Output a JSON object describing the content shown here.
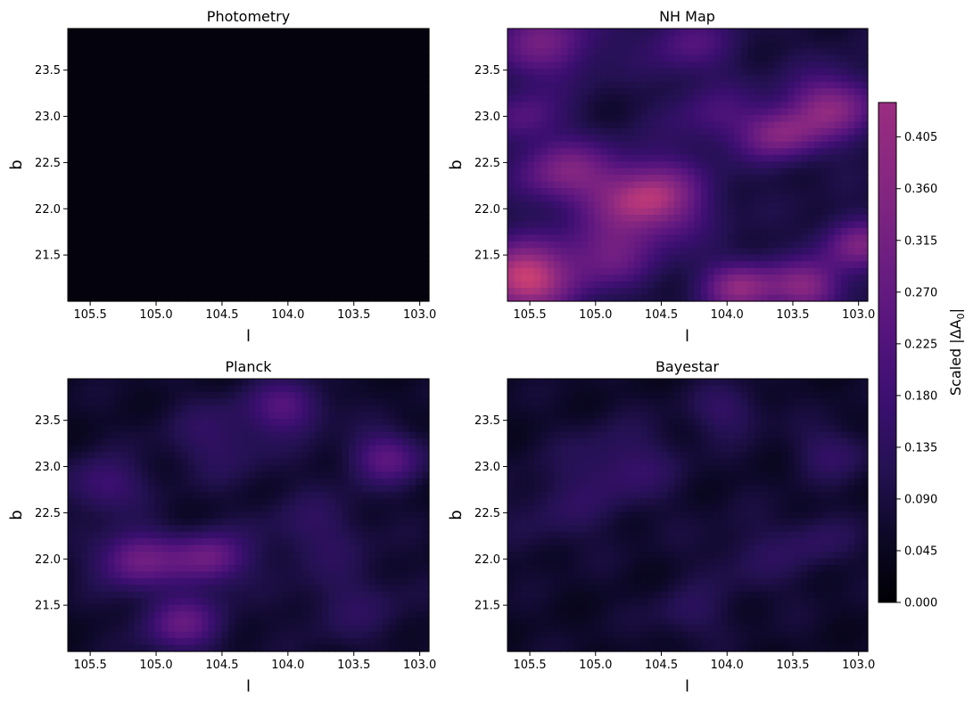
{
  "chart_data": {
    "type": "heatmap",
    "colormap": "magma",
    "panels": [
      {
        "title": "Photometry",
        "xlabel": "l",
        "ylabel": "b",
        "xlim": [
          105.67,
          102.93
        ],
        "ylim": [
          21.0,
          23.95
        ],
        "xticks": [
          "105.5",
          "105.0",
          "104.5",
          "104.0",
          "103.5",
          "103.0"
        ],
        "yticks": [
          "21.5",
          "22.0",
          "22.5",
          "23.0",
          "23.5"
        ],
        "base_level": 0.015,
        "blobs": []
      },
      {
        "title": "NH Map",
        "xlabel": "l",
        "ylabel": "b",
        "xlim": [
          105.67,
          102.93
        ],
        "ylim": [
          21.0,
          23.95
        ],
        "xticks": [
          "105.5",
          "105.0",
          "104.5",
          "104.0",
          "103.5",
          "103.0"
        ],
        "yticks": [
          "21.5",
          "22.0",
          "22.5",
          "23.0",
          "23.5"
        ],
        "base_level": 0.08,
        "blobs": [
          {
            "l": 105.55,
            "b": 21.25,
            "a": 0.33,
            "s": 0.28
          },
          {
            "l": 104.6,
            "b": 22.1,
            "a": 0.3,
            "s": 0.3
          },
          {
            "l": 105.25,
            "b": 22.4,
            "a": 0.2,
            "s": 0.25
          },
          {
            "l": 104.9,
            "b": 21.5,
            "a": 0.15,
            "s": 0.25
          },
          {
            "l": 103.9,
            "b": 21.15,
            "a": 0.24,
            "s": 0.2
          },
          {
            "l": 103.4,
            "b": 21.15,
            "a": 0.22,
            "s": 0.2
          },
          {
            "l": 103.2,
            "b": 23.1,
            "a": 0.23,
            "s": 0.25
          },
          {
            "l": 103.6,
            "b": 22.8,
            "a": 0.2,
            "s": 0.2
          },
          {
            "l": 105.4,
            "b": 23.8,
            "a": 0.18,
            "s": 0.3
          },
          {
            "l": 104.3,
            "b": 23.8,
            "a": 0.12,
            "s": 0.25
          },
          {
            "l": 103.0,
            "b": 21.6,
            "a": 0.2,
            "s": 0.2
          },
          {
            "l": 105.55,
            "b": 23.0,
            "a": 0.12,
            "s": 0.2
          },
          {
            "l": 104.1,
            "b": 23.0,
            "a": 0.1,
            "s": 0.25
          }
        ]
      },
      {
        "title": "Planck",
        "xlabel": "l",
        "ylabel": "b",
        "xlim": [
          105.67,
          102.93
        ],
        "ylim": [
          21.0,
          23.95
        ],
        "xticks": [
          "105.5",
          "105.0",
          "104.5",
          "104.0",
          "103.5",
          "103.0"
        ],
        "yticks": [
          "21.5",
          "22.0",
          "22.5",
          "23.0",
          "23.5"
        ],
        "base_level": 0.06,
        "blobs": [
          {
            "l": 105.15,
            "b": 22.0,
            "a": 0.2,
            "s": 0.22
          },
          {
            "l": 104.6,
            "b": 22.0,
            "a": 0.2,
            "s": 0.2
          },
          {
            "l": 104.8,
            "b": 21.3,
            "a": 0.17,
            "s": 0.22
          },
          {
            "l": 105.4,
            "b": 22.8,
            "a": 0.12,
            "s": 0.2
          },
          {
            "l": 104.0,
            "b": 23.65,
            "a": 0.14,
            "s": 0.2
          },
          {
            "l": 103.25,
            "b": 23.1,
            "a": 0.16,
            "s": 0.2
          },
          {
            "l": 103.8,
            "b": 22.3,
            "a": 0.07,
            "s": 0.3
          },
          {
            "l": 104.5,
            "b": 23.3,
            "a": 0.08,
            "s": 0.3
          },
          {
            "l": 103.5,
            "b": 21.5,
            "a": 0.06,
            "s": 0.3
          }
        ]
      },
      {
        "title": "Bayestar",
        "xlabel": "l",
        "ylabel": "b",
        "xlim": [
          105.67,
          102.93
        ],
        "ylim": [
          21.0,
          23.95
        ],
        "xticks": [
          "105.5",
          "105.0",
          "104.5",
          "104.0",
          "103.5",
          "103.0"
        ],
        "yticks": [
          "21.5",
          "22.0",
          "22.5",
          "23.0",
          "23.5"
        ],
        "base_level": 0.06,
        "blobs": [
          {
            "l": 104.8,
            "b": 23.0,
            "a": 0.09,
            "s": 0.3
          },
          {
            "l": 104.0,
            "b": 23.6,
            "a": 0.08,
            "s": 0.2
          },
          {
            "l": 103.2,
            "b": 23.15,
            "a": 0.08,
            "s": 0.2
          },
          {
            "l": 103.3,
            "b": 22.2,
            "a": 0.06,
            "s": 0.2
          },
          {
            "l": 104.3,
            "b": 21.4,
            "a": 0.06,
            "s": 0.2
          },
          {
            "l": 105.3,
            "b": 22.5,
            "a": 0.05,
            "s": 0.3
          },
          {
            "l": 103.8,
            "b": 22.0,
            "a": 0.05,
            "s": 0.3
          }
        ]
      }
    ],
    "colorbar": {
      "label": "Scaled |ΔA",
      "label_subscript": "0",
      "label_suffix": "|",
      "vmin": 0.0,
      "vmax": 0.435,
      "ticks": [
        "0.000",
        "0.045",
        "0.090",
        "0.135",
        "0.180",
        "0.225",
        "0.270",
        "0.315",
        "0.360",
        "0.405"
      ],
      "tick_values": [
        0.0,
        0.045,
        0.09,
        0.135,
        0.18,
        0.225,
        0.27,
        0.315,
        0.36,
        0.405
      ]
    }
  }
}
